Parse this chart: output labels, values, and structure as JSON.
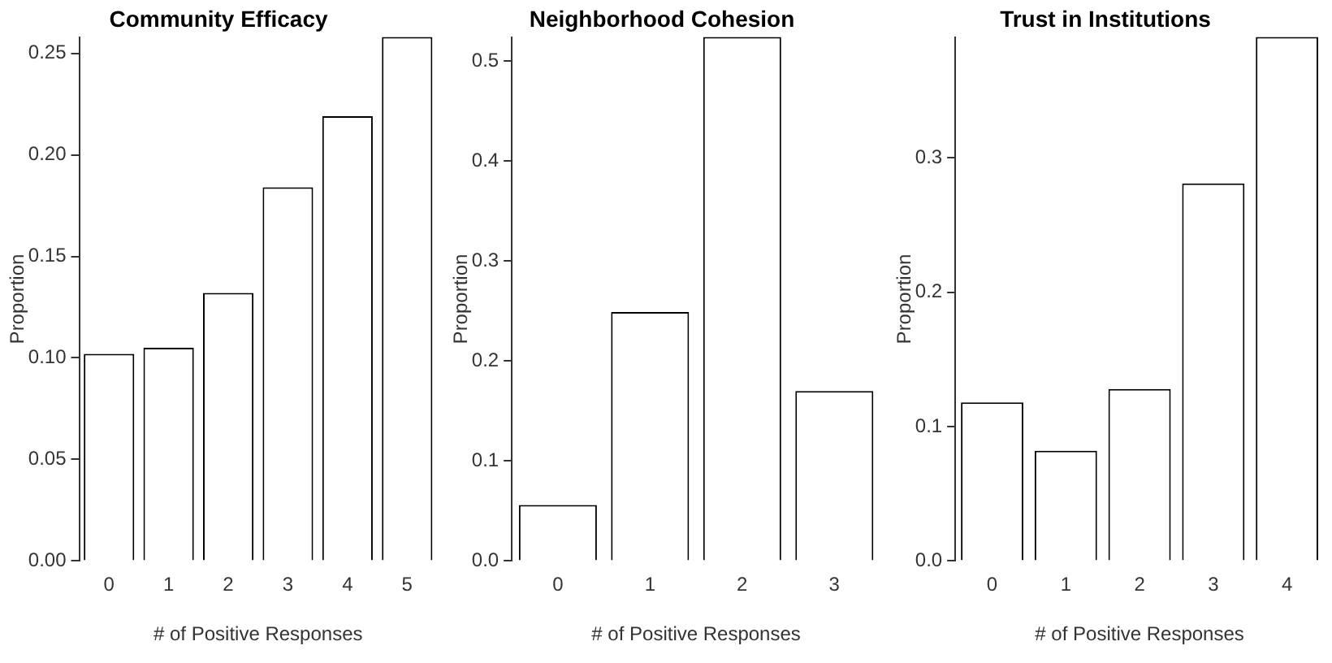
{
  "chart_data": [
    {
      "type": "bar",
      "title": "Community Efficacy",
      "xlabel": "# of Positive Responses",
      "ylabel": "Proportion",
      "categories": [
        "0",
        "1",
        "2",
        "3",
        "4",
        "5"
      ],
      "values": [
        0.102,
        0.105,
        0.132,
        0.184,
        0.219,
        0.258
      ],
      "color": "#ffffff",
      "ylim": [
        0,
        0.258
      ],
      "yticks": [
        {
          "value": 0,
          "label": "0.00"
        },
        {
          "value": 0.05,
          "label": "0.05"
        },
        {
          "value": 0.1,
          "label": "0.10"
        },
        {
          "value": 0.15,
          "label": "0.15"
        },
        {
          "value": 0.2,
          "label": "0.20"
        },
        {
          "value": 0.25,
          "label": "0.25"
        }
      ],
      "grid": false,
      "legend": false
    },
    {
      "type": "bar",
      "title": "Neighborhood Cohesion",
      "xlabel": "# of Positive Responses",
      "ylabel": "Proportion",
      "categories": [
        "0",
        "1",
        "2",
        "3"
      ],
      "values": [
        0.056,
        0.249,
        0.524,
        0.17
      ],
      "color": "#ffffff",
      "ylim": [
        0,
        0.524
      ],
      "yticks": [
        {
          "value": 0,
          "label": "0.0"
        },
        0.1,
        0.2,
        0.3,
        0.4,
        0.5
      ],
      "grid": false,
      "legend": false
    },
    {
      "type": "bar",
      "title": "Trust in Institutions",
      "xlabel": "# of Positive Responses",
      "ylabel": "Proportion",
      "categories": [
        "0",
        "1",
        "2",
        "3",
        "4"
      ],
      "values": [
        0.118,
        0.082,
        0.128,
        0.281,
        0.39
      ],
      "color": "#ffffff",
      "ylim": [
        0,
        0.39
      ],
      "yticks": [
        {
          "value": 0,
          "label": "0.0"
        },
        0.1,
        0.2,
        0.3
      ],
      "grid": false,
      "legend": false
    }
  ]
}
